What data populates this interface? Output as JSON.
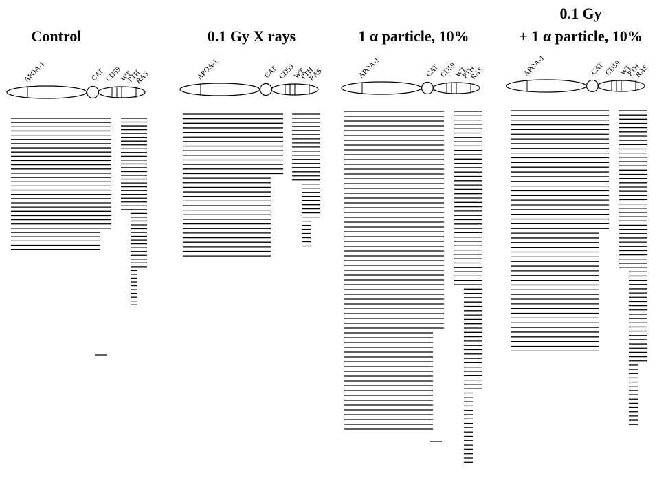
{
  "figure": {
    "panels": [
      {
        "id": "control",
        "title_lines": [
          "Control"
        ],
        "genes": [
          "APOA-1",
          "CAT",
          "CD59",
          "WT",
          "PTH",
          "RAS"
        ],
        "left_rows": 32,
        "right_rows": 50,
        "long_left_rows": 27
      },
      {
        "id": "xray",
        "title_lines": [
          "0.1 Gy X rays"
        ],
        "genes": [
          "APOA-1",
          "CAT",
          "CD59",
          "WT",
          "PTH",
          "RAS"
        ],
        "left_rows": 32,
        "right_rows": 33,
        "long_left_rows": 14
      },
      {
        "id": "alpha",
        "title_lines": [
          "1 α particle, 10%"
        ],
        "genes": [
          "APOA-1",
          "CAT",
          "CD59",
          "WT",
          "PTH",
          "RAS"
        ],
        "left_rows": 67,
        "right_rows": 82,
        "long_left_rows": 46
      },
      {
        "id": "combined",
        "title_lines": [
          "0.1 Gy",
          "+ 1 α particle, 10%"
        ],
        "genes": [
          "APOA-1",
          "CAT",
          "CD59",
          "WT",
          "PTH",
          "RAS"
        ],
        "left_rows": 52,
        "right_rows": 75,
        "long_left_rows": 26
      }
    ]
  }
}
